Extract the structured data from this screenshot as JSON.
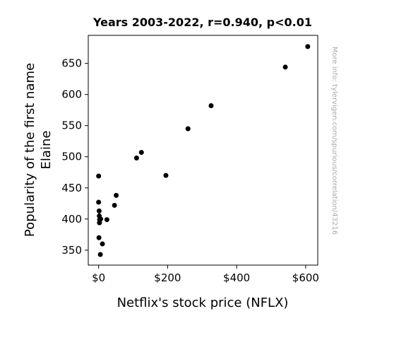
{
  "chart_data": {
    "type": "scatter",
    "title": "Years 2003-2022, r=0.940, p<0.01",
    "xlabel": "Netflix's stock price (NFLX)",
    "ylabel_lines": [
      "Popularity of the first name",
      "Elaine"
    ],
    "watermark": "More info: tylervigen.com/spurious/correlation/43216",
    "xlim": [
      -30,
      635
    ],
    "ylim": [
      326,
      695
    ],
    "x_ticks": [
      {
        "value": 0,
        "label": "$0"
      },
      {
        "value": 200,
        "label": "$200"
      },
      {
        "value": 400,
        "label": "$400"
      },
      {
        "value": 600,
        "label": "$600"
      }
    ],
    "y_ticks": [
      {
        "value": 350,
        "label": "350"
      },
      {
        "value": 400,
        "label": "400"
      },
      {
        "value": 450,
        "label": "450"
      },
      {
        "value": 500,
        "label": "500"
      },
      {
        "value": 550,
        "label": "550"
      },
      {
        "value": 600,
        "label": "600"
      },
      {
        "value": 650,
        "label": "650"
      }
    ],
    "point_color": "#000000",
    "points": [
      {
        "x": 0,
        "y": 469
      },
      {
        "x": 0,
        "y": 427
      },
      {
        "x": 1.5,
        "y": 413
      },
      {
        "x": 2,
        "y": 405
      },
      {
        "x": 3,
        "y": 399
      },
      {
        "x": 2.5,
        "y": 394
      },
      {
        "x": 6,
        "y": 400
      },
      {
        "x": 1,
        "y": 370
      },
      {
        "x": 11,
        "y": 360
      },
      {
        "x": 5,
        "y": 343
      },
      {
        "x": 24,
        "y": 399
      },
      {
        "x": 46,
        "y": 422
      },
      {
        "x": 51,
        "y": 438
      },
      {
        "x": 110,
        "y": 498
      },
      {
        "x": 124,
        "y": 507
      },
      {
        "x": 195,
        "y": 470
      },
      {
        "x": 259,
        "y": 545
      },
      {
        "x": 326,
        "y": 582
      },
      {
        "x": 541,
        "y": 644
      },
      {
        "x": 606,
        "y": 677
      }
    ]
  }
}
